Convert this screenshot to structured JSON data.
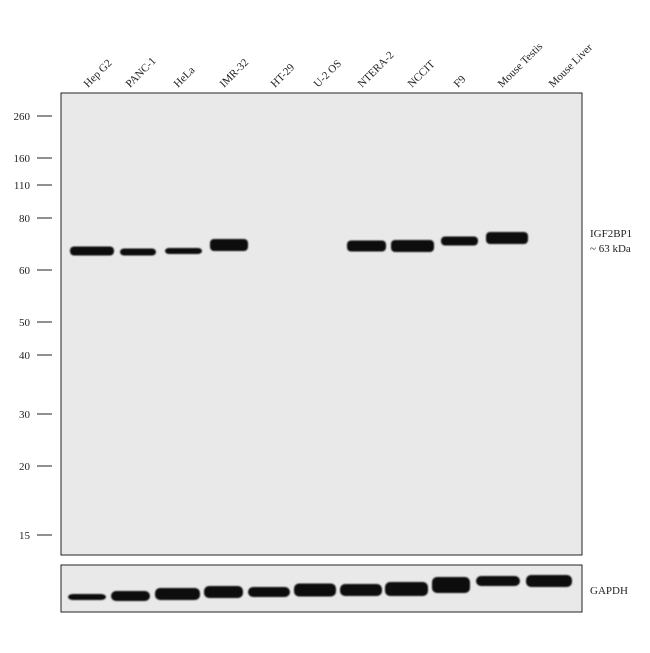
{
  "lanes": [
    "Hep G2",
    "PANC-1",
    "HeLa",
    "IMR-32",
    "HT-29",
    "U-2 OS",
    "NTERA-2",
    "NCCIT",
    "F9",
    "Mouse Testis",
    "Mouse Liver"
  ],
  "markers": [
    260,
    160,
    110,
    80,
    60,
    50,
    40,
    30,
    20,
    15
  ],
  "band_labels": {
    "target": "IGF2BP1",
    "size": "~ 63 kDa",
    "loading_control": "GAPDH"
  }
}
